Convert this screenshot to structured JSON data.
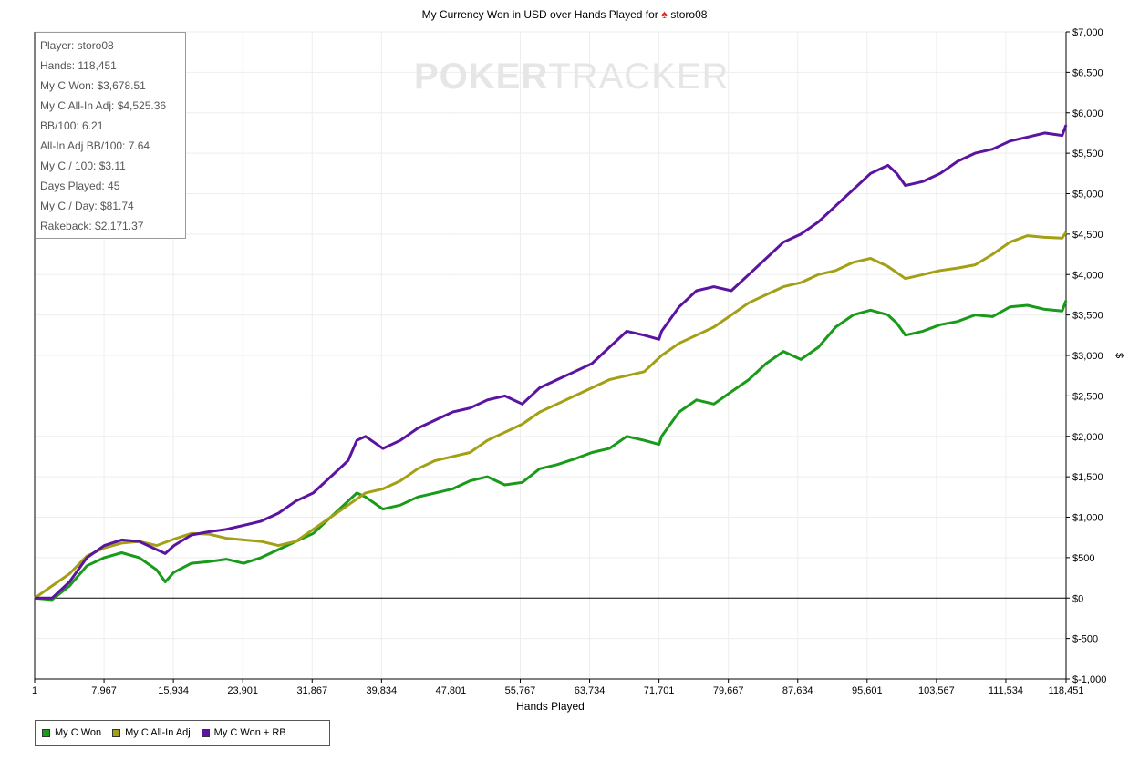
{
  "chart_data": {
    "type": "line",
    "title": "My Currency Won in USD over Hands Played for",
    "title_player": "storo08",
    "xlabel": "Hands Played",
    "ylabel": "$",
    "xlim": [
      1,
      118451
    ],
    "ylim": [
      -1000,
      7000
    ],
    "x_ticks": [
      1,
      7967,
      15934,
      23901,
      31867,
      39834,
      47801,
      55767,
      63734,
      71701,
      79667,
      87634,
      95601,
      103567,
      111534,
      118451
    ],
    "y_ticks": [
      -1000,
      -500,
      0,
      500,
      1000,
      1500,
      2000,
      2500,
      3000,
      3500,
      4000,
      4500,
      5000,
      5500,
      6000,
      6500,
      7000
    ],
    "y_tick_labels": [
      "$-1,000",
      "$-500",
      "$0",
      "$500",
      "$1,000",
      "$1,500",
      "$2,000",
      "$2,500",
      "$3,000",
      "$3,500",
      "$4,000",
      "$4,500",
      "$5,000",
      "$5,500",
      "$6,000",
      "$6,500",
      "$7,000"
    ],
    "grid": true,
    "legend_position": "bottom-left",
    "series": [
      {
        "name": "My C Won",
        "color": "#1a9a1a",
        "x": [
          1,
          2000,
          4000,
          6000,
          8000,
          10000,
          12000,
          14000,
          15000,
          16000,
          18000,
          20000,
          22000,
          24000,
          26000,
          28000,
          30000,
          32000,
          34000,
          36000,
          37000,
          38000,
          40000,
          42000,
          44000,
          46000,
          48000,
          50000,
          52000,
          54000,
          56000,
          58000,
          60000,
          62000,
          64000,
          66000,
          68000,
          70000,
          71700,
          72000,
          74000,
          76000,
          78000,
          80000,
          82000,
          84000,
          86000,
          88000,
          90000,
          92000,
          94000,
          96000,
          98000,
          99000,
          100000,
          102000,
          104000,
          106000,
          108000,
          110000,
          112000,
          114000,
          116000,
          118000,
          118451
        ],
        "y": [
          0,
          -20,
          150,
          400,
          500,
          560,
          500,
          350,
          200,
          320,
          430,
          450,
          480,
          430,
          500,
          600,
          700,
          800,
          1000,
          1200,
          1300,
          1250,
          1100,
          1150,
          1250,
          1300,
          1350,
          1450,
          1500,
          1400,
          1430,
          1600,
          1650,
          1720,
          1800,
          1850,
          2000,
          1950,
          1900,
          2000,
          2300,
          2450,
          2400,
          2550,
          2700,
          2900,
          3050,
          2950,
          3100,
          3350,
          3500,
          3560,
          3500,
          3400,
          3250,
          3300,
          3380,
          3420,
          3500,
          3480,
          3600,
          3620,
          3570,
          3550,
          3680
        ]
      },
      {
        "name": "My C All-In Adj",
        "color": "#a3a016",
        "x": [
          1,
          2000,
          4000,
          6000,
          8000,
          10000,
          12000,
          14000,
          16000,
          18000,
          20000,
          22000,
          24000,
          26000,
          28000,
          30000,
          32000,
          34000,
          36000,
          38000,
          40000,
          42000,
          44000,
          46000,
          48000,
          50000,
          52000,
          54000,
          56000,
          58000,
          60000,
          62000,
          64000,
          66000,
          68000,
          70000,
          72000,
          74000,
          76000,
          78000,
          80000,
          82000,
          84000,
          86000,
          88000,
          90000,
          92000,
          94000,
          96000,
          98000,
          100000,
          102000,
          104000,
          106000,
          108000,
          110000,
          112000,
          114000,
          116000,
          118000,
          118451
        ],
        "y": [
          0,
          150,
          300,
          520,
          620,
          680,
          700,
          650,
          730,
          800,
          790,
          740,
          720,
          700,
          650,
          700,
          850,
          1000,
          1150,
          1300,
          1350,
          1450,
          1600,
          1700,
          1750,
          1800,
          1950,
          2050,
          2150,
          2300,
          2400,
          2500,
          2600,
          2700,
          2750,
          2800,
          3000,
          3150,
          3250,
          3350,
          3500,
          3650,
          3750,
          3850,
          3900,
          4000,
          4050,
          4150,
          4200,
          4100,
          3950,
          4000,
          4050,
          4080,
          4120,
          4250,
          4400,
          4480,
          4460,
          4450,
          4525
        ]
      },
      {
        "name": "My C Won + RB",
        "color": "#5b14a0",
        "x": [
          1,
          2000,
          4000,
          6000,
          8000,
          10000,
          12000,
          14000,
          15000,
          16000,
          18000,
          20000,
          22000,
          24000,
          26000,
          28000,
          30000,
          32000,
          34000,
          36000,
          37000,
          38000,
          40000,
          42000,
          44000,
          46000,
          48000,
          50000,
          52000,
          54000,
          56000,
          58000,
          60000,
          62000,
          64000,
          66000,
          68000,
          70000,
          71700,
          72000,
          74000,
          76000,
          78000,
          80000,
          82000,
          84000,
          86000,
          88000,
          90000,
          92000,
          94000,
          96000,
          98000,
          99000,
          100000,
          102000,
          104000,
          106000,
          108000,
          110000,
          112000,
          114000,
          116000,
          118000,
          118451
        ],
        "y": [
          0,
          0,
          200,
          500,
          650,
          720,
          700,
          600,
          550,
          650,
          780,
          820,
          850,
          900,
          950,
          1050,
          1200,
          1300,
          1500,
          1700,
          1950,
          2000,
          1850,
          1950,
          2100,
          2200,
          2300,
          2350,
          2450,
          2500,
          2400,
          2600,
          2700,
          2800,
          2900,
          3100,
          3300,
          3250,
          3200,
          3300,
          3600,
          3800,
          3850,
          3800,
          4000,
          4200,
          4400,
          4500,
          4650,
          4850,
          5050,
          5250,
          5350,
          5250,
          5100,
          5150,
          5250,
          5400,
          5500,
          5550,
          5650,
          5700,
          5750,
          5720,
          5850
        ]
      }
    ]
  },
  "stats": [
    "Player: storo08",
    "Hands: 118,451",
    "My C Won: $3,678.51",
    "My C All-In Adj: $4,525.36",
    "BB/100: 6.21",
    "All-In Adj BB/100: 7.64",
    "My C / 100: $3.11",
    "Days Played: 45",
    "My C / Day: $81.74",
    "Rakeback: $2,171.37"
  ],
  "watermark": {
    "part1": "POKER",
    "part2": "TRACKER"
  }
}
